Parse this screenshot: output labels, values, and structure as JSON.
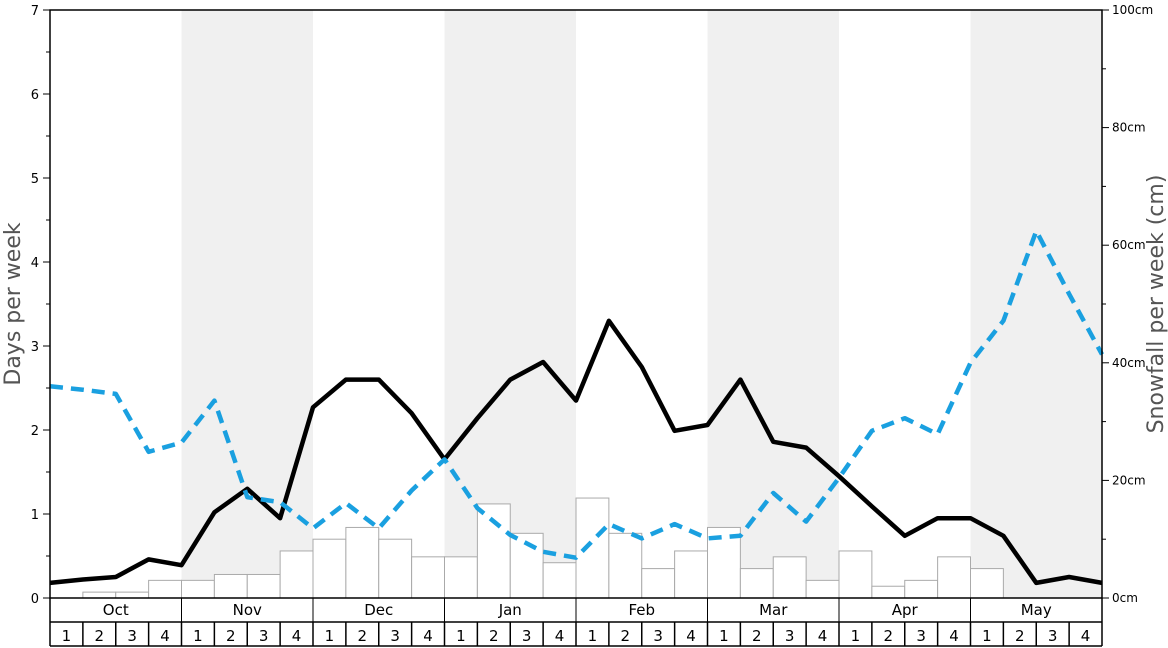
{
  "chart_data": {
    "type": "bar+line",
    "left_axis": {
      "label": "Days per week",
      "range": [
        0,
        7
      ],
      "ticks": [
        "0",
        "1",
        "2",
        "3",
        "4",
        "5",
        "6",
        "7"
      ]
    },
    "right_axis": {
      "label": "Snowfall per week (cm)",
      "range": [
        0,
        100
      ],
      "ticks": [
        "0cm",
        "20cm",
        "40cm",
        "60cm",
        "80cm",
        "100cm"
      ]
    },
    "months": [
      "Oct",
      "Nov",
      "Dec",
      "Jan",
      "Feb",
      "Mar",
      "Apr",
      "May"
    ],
    "week_labels": [
      "1",
      "2",
      "3",
      "4"
    ],
    "shaded_months": [
      "Nov",
      "Jan",
      "Mar",
      "May"
    ],
    "colors": {
      "shade": "#f0f0f0",
      "bar_fill": "#ffffff",
      "bar_stroke": "#aaaaaa",
      "solid_line": "#000000",
      "dashed_line": "#1aa0e0"
    },
    "series": [
      {
        "kind": "bar",
        "axis": "right",
        "unit": "cm",
        "values": [
          0,
          1,
          1,
          3,
          3,
          4,
          4,
          8,
          10,
          12,
          10,
          7,
          7,
          16,
          11,
          6,
          17,
          11,
          5,
          8,
          12,
          5,
          7,
          3,
          8,
          2,
          3,
          7,
          5,
          0,
          0,
          0
        ]
      },
      {
        "kind": "line",
        "style": "solid",
        "axis": "left",
        "values": [
          0.18,
          0.22,
          0.25,
          0.46,
          0.39,
          1.02,
          1.3,
          0.95,
          2.27,
          2.6,
          2.6,
          2.2,
          1.65,
          2.14,
          2.6,
          2.81,
          2.35,
          3.3,
          2.75,
          1.99,
          2.06,
          2.6,
          1.86,
          1.79,
          1.45,
          1.09,
          0.74,
          0.95,
          0.95,
          0.74,
          0.18,
          0.25,
          0.18
        ]
      },
      {
        "kind": "line",
        "style": "dashed",
        "axis": "left",
        "values": [
          2.52,
          2.48,
          2.43,
          1.74,
          1.85,
          2.35,
          1.2,
          1.14,
          0.83,
          1.13,
          0.83,
          1.28,
          1.65,
          1.07,
          0.75,
          0.55,
          0.48,
          0.88,
          0.71,
          0.88,
          0.71,
          0.74,
          1.25,
          0.91,
          1.43,
          1.99,
          2.14,
          1.95,
          2.8,
          3.3,
          4.37,
          3.62,
          2.9
        ]
      }
    ]
  }
}
